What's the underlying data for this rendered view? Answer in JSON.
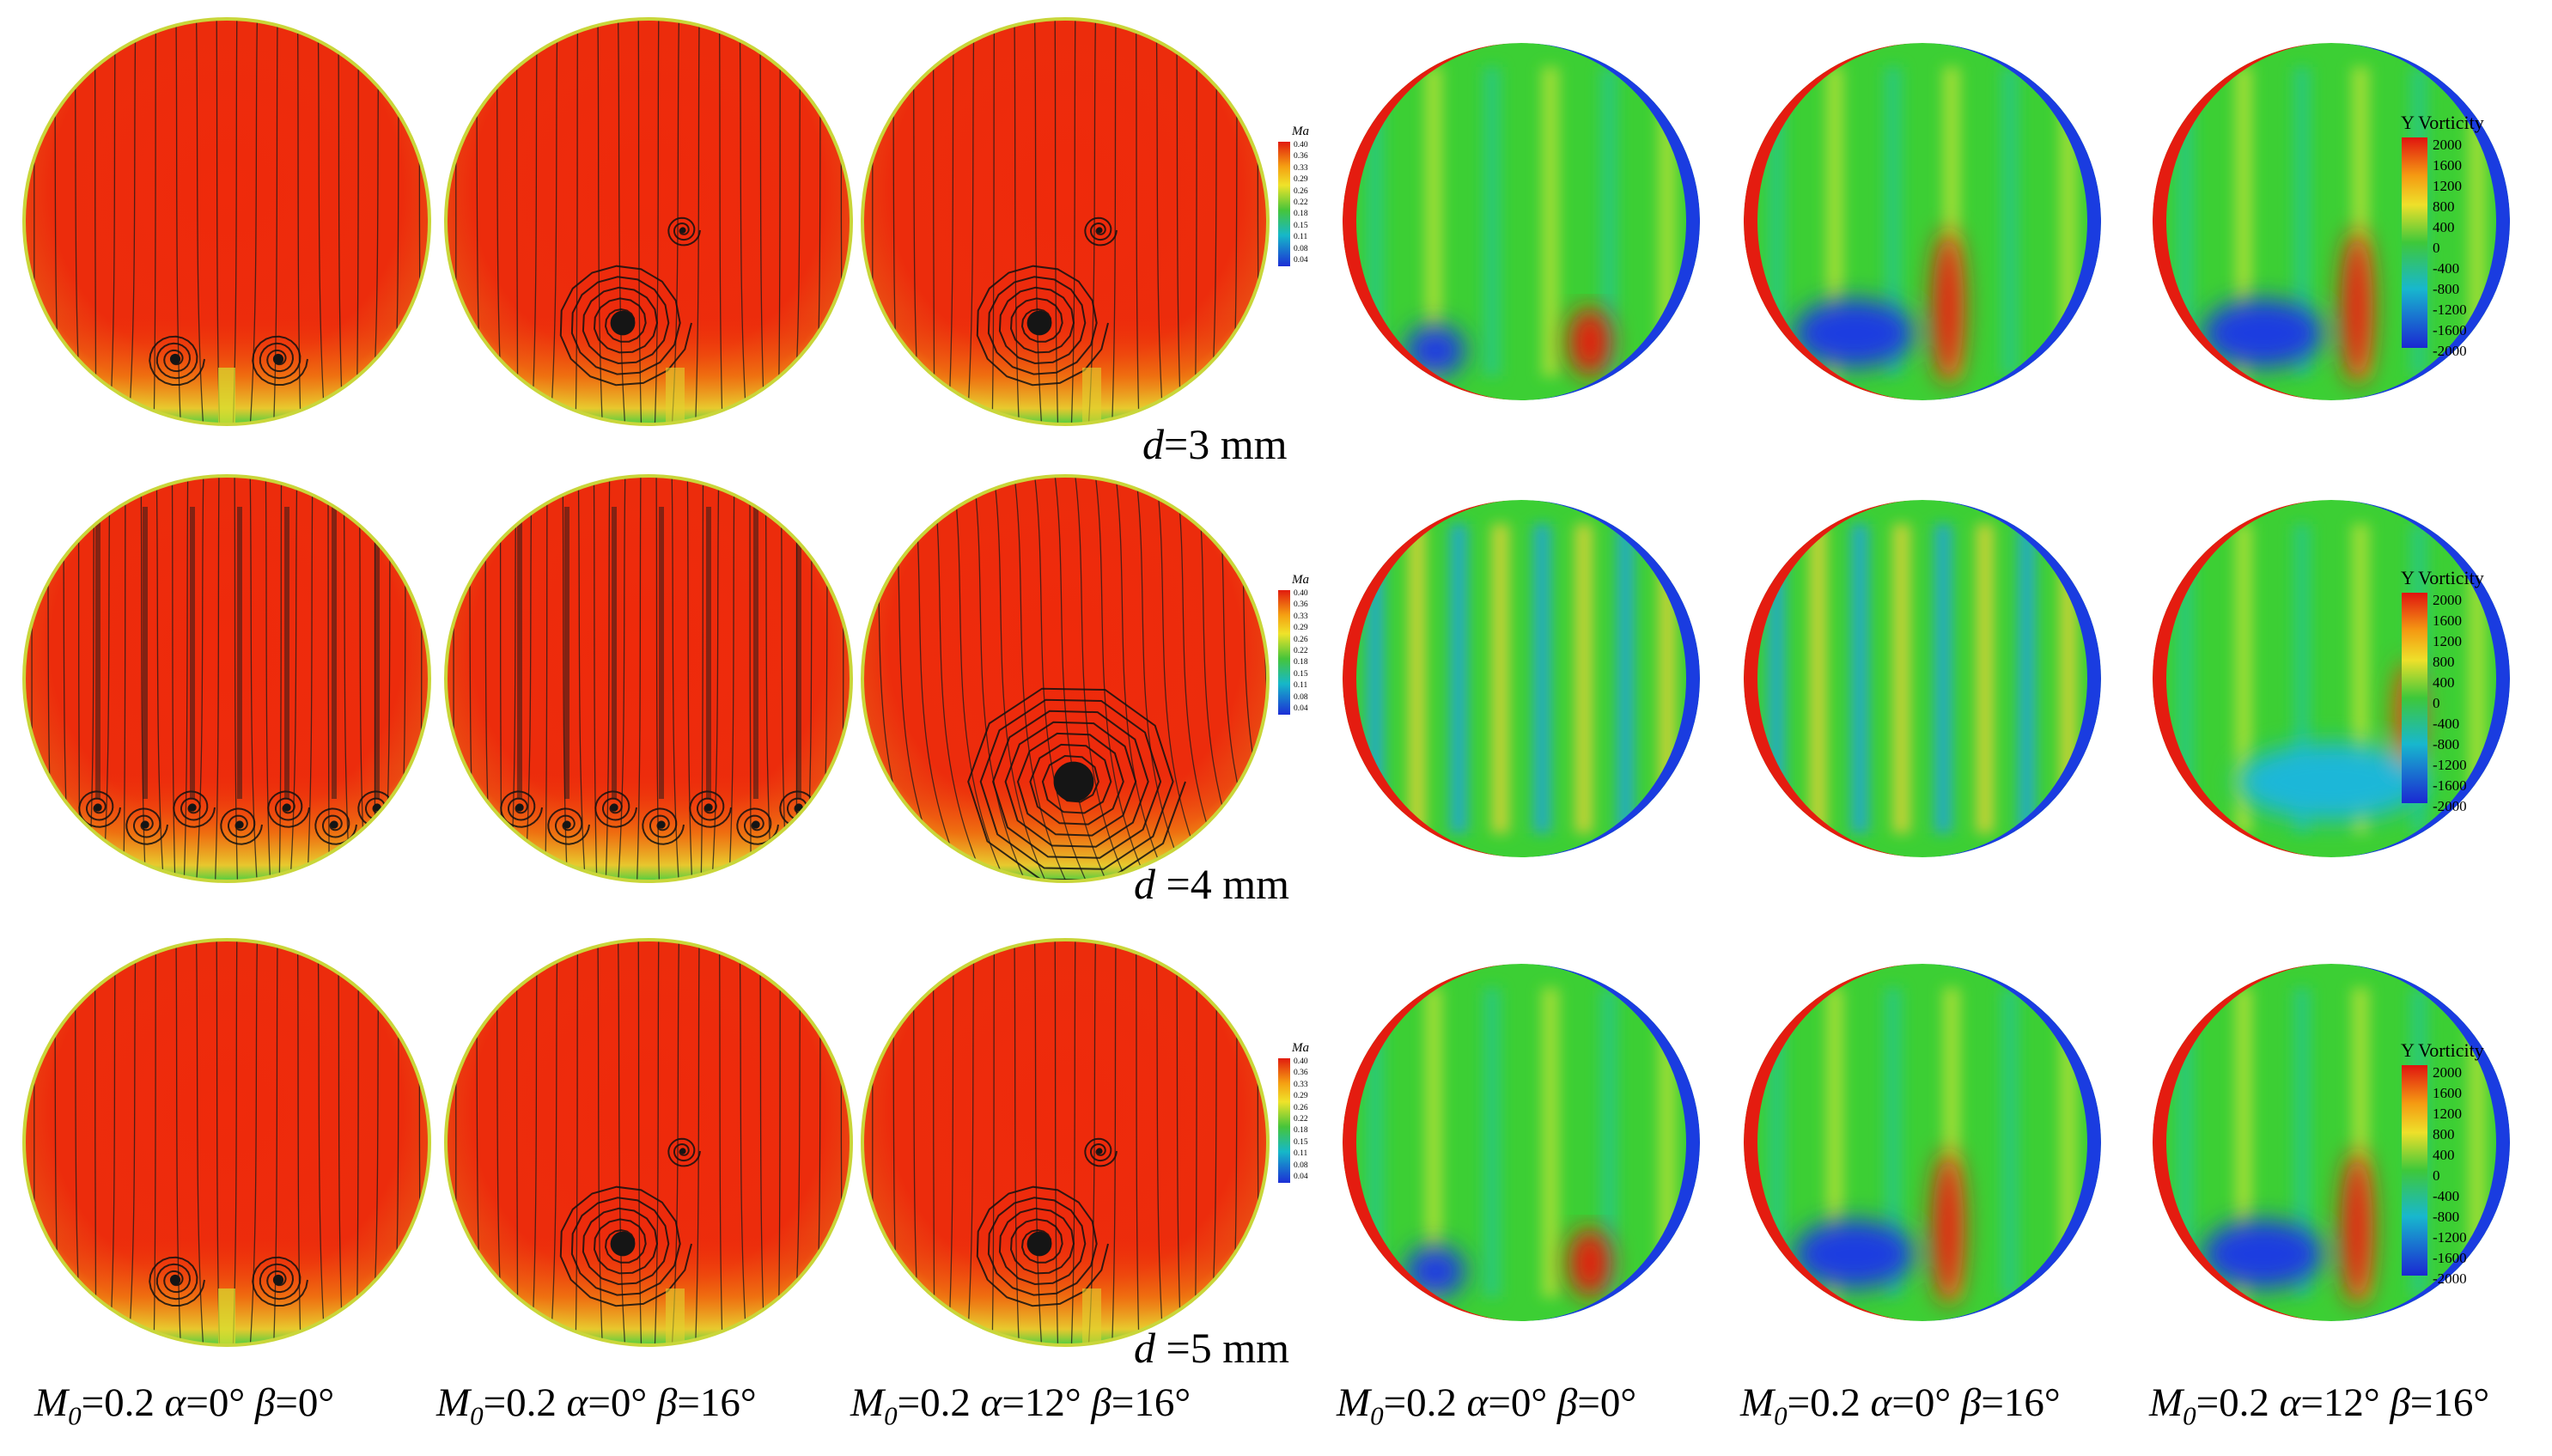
{
  "rows": [
    {
      "label_var": "d",
      "label_value": "=3 mm"
    },
    {
      "label_var": "d",
      "label_value": " =4 mm"
    },
    {
      "label_var": "d",
      "label_value": " =5 mm"
    }
  ],
  "conditions": [
    {
      "m": "M",
      "sub": "0",
      "rest": "=0.2 ",
      "alpha": "α",
      "alpha_val": "=0°  ",
      "beta": "β",
      "beta_val": "=0°"
    },
    {
      "m": "M",
      "sub": "0",
      "rest": "=0.2 ",
      "alpha": "α",
      "alpha_val": "=0°  ",
      "beta": "β",
      "beta_val": "=16°"
    },
    {
      "m": "M",
      "sub": "0",
      "rest": "=0.2 ",
      "alpha": "α",
      "alpha_val": "=12°  ",
      "beta": "β",
      "beta_val": "=16°"
    },
    {
      "m": "M",
      "sub": "0",
      "rest": "=0.2 ",
      "alpha": "α",
      "alpha_val": "=0°  ",
      "beta": "β",
      "beta_val": "=0°"
    },
    {
      "m": "M",
      "sub": "0",
      "rest": "=0.2 ",
      "alpha": "α",
      "alpha_val": "=0°  ",
      "beta": "β",
      "beta_val": "=16°"
    },
    {
      "m": "M",
      "sub": "0",
      "rest": "=0.2 ",
      "alpha": "α",
      "alpha_val": "=12°  ",
      "beta": "β",
      "beta_val": "=16°"
    }
  ],
  "ma_legend": {
    "title": "Ma",
    "ticks": [
      "0.40",
      "0.36",
      "0.33",
      "0.29",
      "0.26",
      "0.22",
      "0.18",
      "0.15",
      "0.11",
      "0.08",
      "0.04"
    ]
  },
  "vorticity_legend": {
    "title": "Y Vorticity",
    "ticks": [
      "2000",
      "1600",
      "1200",
      "800",
      "400",
      "0",
      "-400",
      "-800",
      "-1200",
      "-1600",
      "-2000"
    ]
  },
  "colors": {
    "ma_field": "#ee2a0c",
    "vort_green": "#3ccf34",
    "vort_red": "#e41c10",
    "vort_blue": "#1a3ce0"
  },
  "ma_panels": [
    {
      "vortices": "symmetric-pair-bottom"
    },
    {
      "vortices": "single-large-lower-left"
    },
    {
      "vortices": "single-large-lower-left"
    },
    {
      "vortices": "multiple-streaks"
    },
    {
      "vortices": "multiple-streaks"
    },
    {
      "vortices": "single-very-large-center-right"
    },
    {
      "vortices": "symmetric-pair-bottom"
    },
    {
      "vortices": "single-large-lower-left"
    },
    {
      "vortices": "single-large-lower-left"
    }
  ]
}
